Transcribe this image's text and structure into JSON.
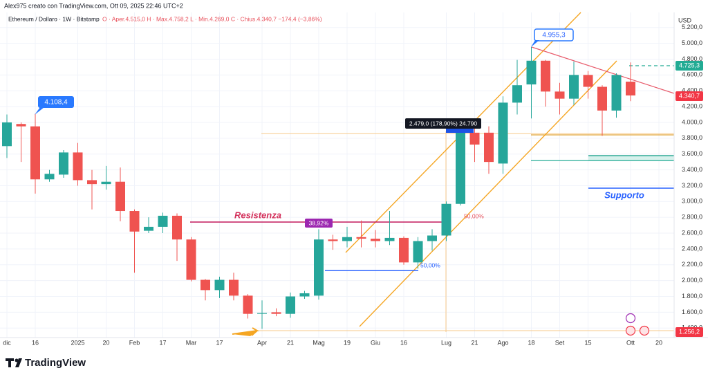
{
  "header": {
    "author_line": "Alex975 creato con TradingView.com, Ott 09, 2025 22:46 UTC+2",
    "symbol": "Ethereum / Dollaro · 1W · Bitstamp",
    "ohlc": "O · Aper.4.515,0   H · Max.4.758,2   L · Min.4.269,0   C · Chius.4.340,7   −174,4 (−3,86%)",
    "brand": "TradingView"
  },
  "chart_data": {
    "type": "candlestick",
    "currency": "USD",
    "categories": [
      "dic",
      null,
      "16",
      null,
      null,
      "2025",
      null,
      "20",
      null,
      "Feb",
      null,
      "17",
      null,
      "Mar",
      null,
      "17",
      null,
      null,
      "Apr",
      null,
      "21",
      null,
      "Mag",
      null,
      "19",
      null,
      "Giu",
      null,
      "16",
      null,
      null,
      "Lug",
      null,
      "21",
      null,
      "Ago",
      null,
      "18",
      null,
      "Set",
      null,
      "15",
      null,
      null,
      "Ott",
      null,
      "20"
    ],
    "open": [
      3700,
      3980,
      3950,
      3280,
      3340,
      3620,
      3270,
      3220,
      3250,
      2880,
      2630,
      2680,
      2820,
      2520,
      2010,
      1880,
      2010,
      1810,
      1580,
      1600,
      1580,
      1800,
      1810,
      2520,
      2500,
      2550,
      2530,
      2500,
      2540,
      2230,
      2500,
      2570,
      2970,
      3870,
      3870,
      3480,
      4250,
      4480,
      4780,
      4390,
      4300,
      4600,
      4450,
      4150,
      4515,
      null,
      null
    ],
    "high": [
      4100,
      4000,
      4108.4,
      3400,
      3650,
      3740,
      3400,
      3450,
      3430,
      2900,
      2800,
      2860,
      2850,
      2550,
      2020,
      2050,
      2100,
      1830,
      1750,
      1650,
      1850,
      1870,
      2650,
      2580,
      2680,
      2760,
      2640,
      2880,
      2560,
      2550,
      2650,
      3000,
      3940,
      3940,
      3950,
      4330,
      4790,
      4955.3,
      4790,
      4500,
      4770,
      4650,
      4470,
      4620,
      4758.2,
      null,
      null
    ],
    "low": [
      3550,
      3500,
      3100,
      3250,
      3300,
      3200,
      2900,
      3150,
      2750,
      2100,
      2600,
      2600,
      2250,
      1990,
      1750,
      1780,
      1750,
      1520,
      1390,
      1550,
      1530,
      1770,
      1760,
      2390,
      2420,
      2420,
      2420,
      2450,
      2200,
      2150,
      2380,
      2500,
      2950,
      3500,
      3350,
      3350,
      4100,
      4050,
      4200,
      4100,
      4220,
      4300,
      3830,
      4060,
      4269,
      null,
      null
    ],
    "close": [
      4000,
      3950,
      3280,
      3350,
      3620,
      3270,
      3220,
      3250,
      2880,
      2620,
      2680,
      2820,
      2520,
      2010,
      1880,
      2010,
      1810,
      1580,
      1590,
      1580,
      1800,
      1840,
      2520,
      2500,
      2550,
      2530,
      2500,
      2540,
      2230,
      2500,
      2570,
      2970,
      3870,
      3720,
      3500,
      4250,
      4470,
      4780,
      4390,
      4300,
      4600,
      4450,
      4150,
      4600,
      4340.7,
      null,
      null
    ],
    "up_color": "#26a69a",
    "down_color": "#ef5350",
    "ylim": [
      1280,
      5390
    ],
    "yticks": [
      {
        "value": 1400,
        "label": "1.400,0"
      },
      {
        "value": 1600,
        "label": "1.600,0"
      },
      {
        "value": 1800,
        "label": "1.800,0"
      },
      {
        "value": 2000,
        "label": "2.000,0"
      },
      {
        "value": 2200,
        "label": "2.200,0"
      },
      {
        "value": 2400,
        "label": "2.400,0"
      },
      {
        "value": 2600,
        "label": "2.600,0"
      },
      {
        "value": 2800,
        "label": "2.800,0"
      },
      {
        "value": 3000,
        "label": "3.000,0"
      },
      {
        "value": 3200,
        "label": "3.200,0"
      },
      {
        "value": 3400,
        "label": "3.400,0"
      },
      {
        "value": 3600,
        "label": "3.600,0"
      },
      {
        "value": 3800,
        "label": "3.800,0"
      },
      {
        "value": 4000,
        "label": "4.000,0"
      },
      {
        "value": 4200,
        "label": "4.200,0"
      },
      {
        "value": 4400,
        "label": "4.400,0"
      },
      {
        "value": 4600,
        "label": "4.600,0"
      },
      {
        "value": 4800,
        "label": "4.800,0"
      },
      {
        "value": 5000,
        "label": "5.000,0"
      },
      {
        "value": 5200,
        "label": "5.200,0"
      }
    ],
    "grid": true,
    "annotations": [
      "Resistenza",
      "Supporto",
      "4.108,4",
      "4.955,3",
      "2.479,0 (178,90%) 24.790",
      "38,92%",
      "50,00%",
      "50,00%",
      "4.725,3",
      "4.340,7",
      "1.256,2"
    ]
  }
}
